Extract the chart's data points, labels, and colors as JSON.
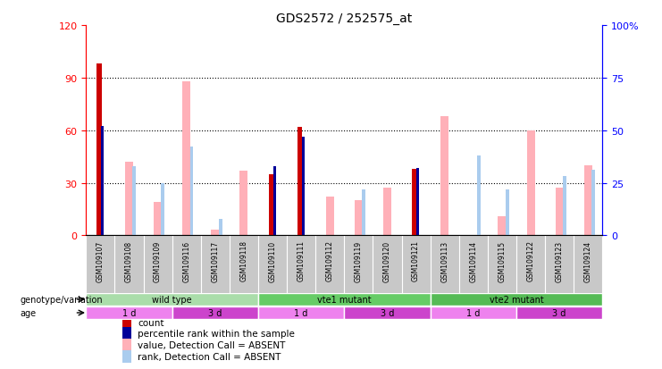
{
  "title": "GDS2572 / 252575_at",
  "samples": [
    "GSM109107",
    "GSM109108",
    "GSM109109",
    "GSM109116",
    "GSM109117",
    "GSM109118",
    "GSM109110",
    "GSM109111",
    "GSM109112",
    "GSM109119",
    "GSM109120",
    "GSM109121",
    "GSM109113",
    "GSM109114",
    "GSM109115",
    "GSM109122",
    "GSM109123",
    "GSM109124"
  ],
  "count": [
    98,
    0,
    0,
    0,
    0,
    0,
    35,
    62,
    0,
    0,
    0,
    38,
    0,
    0,
    0,
    0,
    0,
    0
  ],
  "percentile_rank": [
    52,
    0,
    0,
    0,
    0,
    0,
    33,
    47,
    0,
    0,
    0,
    32,
    0,
    0,
    0,
    0,
    0,
    0
  ],
  "absent_value": [
    0,
    42,
    19,
    88,
    3,
    37,
    0,
    0,
    22,
    20,
    27,
    0,
    68,
    0,
    11,
    60,
    27,
    40
  ],
  "absent_rank": [
    0,
    33,
    25,
    42,
    8,
    0,
    0,
    0,
    0,
    22,
    0,
    0,
    0,
    38,
    22,
    0,
    28,
    31
  ],
  "ylim_left": [
    0,
    120
  ],
  "ylim_right": [
    0,
    100
  ],
  "yticks_left": [
    0,
    30,
    60,
    90,
    120
  ],
  "yticks_right": [
    0,
    25,
    50,
    75,
    100
  ],
  "ytick_labels_right": [
    "0",
    "25",
    "50",
    "75",
    "100%"
  ],
  "genotype_groups": [
    {
      "label": "wild type",
      "start": 0,
      "end": 6
    },
    {
      "label": "vte1 mutant",
      "start": 6,
      "end": 12
    },
    {
      "label": "vte2 mutant",
      "start": 12,
      "end": 18
    }
  ],
  "geno_colors": [
    "#aaddaa",
    "#66cc66",
    "#55bb55"
  ],
  "age_groups": [
    {
      "label": "1 d",
      "start": 0,
      "end": 3
    },
    {
      "label": "3 d",
      "start": 3,
      "end": 6
    },
    {
      "label": "1 d",
      "start": 6,
      "end": 9
    },
    {
      "label": "3 d",
      "start": 9,
      "end": 12
    },
    {
      "label": "1 d",
      "start": 12,
      "end": 15
    },
    {
      "label": "3 d",
      "start": 15,
      "end": 18
    }
  ],
  "age_color_1d": "#ee82ee",
  "age_color_3d": "#cc44cc",
  "color_count": "#cc0000",
  "color_rank": "#000099",
  "color_absent_value": "#ffb0b8",
  "color_absent_rank": "#aaccee",
  "gridline_y": [
    30,
    60,
    90
  ]
}
